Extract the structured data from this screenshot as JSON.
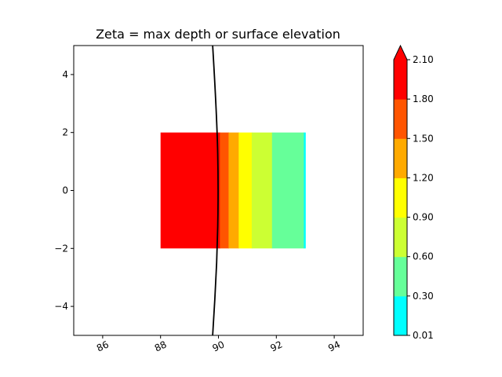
{
  "chart_data": {
    "type": "heatmap",
    "title": "Zeta = max depth or surface elevation",
    "xlabel": "",
    "ylabel": "",
    "xlim": [
      85,
      95
    ],
    "ylim": [
      -5,
      5
    ],
    "xticks": [
      {
        "value": 86,
        "label": "86"
      },
      {
        "value": 88,
        "label": "88"
      },
      {
        "value": 90,
        "label": "90"
      },
      {
        "value": 92,
        "label": "92"
      },
      {
        "value": 94,
        "label": "94"
      }
    ],
    "yticks": [
      {
        "value": 4,
        "label": "4"
      },
      {
        "value": 2,
        "label": "2"
      },
      {
        "value": 0,
        "label": "0"
      },
      {
        "value": -2,
        "label": "−2"
      },
      {
        "value": -4,
        "label": "−4"
      }
    ],
    "grid": false,
    "filled_bands": [
      {
        "x_start": 88.0,
        "x_end": 90.05,
        "color": "#ff0000",
        "level": "1.80–2.10"
      },
      {
        "x_start": 90.05,
        "x_end": 90.35,
        "color": "#ff5500",
        "level": "1.50–1.80"
      },
      {
        "x_start": 90.35,
        "x_end": 90.7,
        "color": "#ffaa00",
        "level": "1.20–1.50"
      },
      {
        "x_start": 90.7,
        "x_end": 91.15,
        "color": "#ffff00",
        "level": "0.90–1.20"
      },
      {
        "x_start": 91.15,
        "x_end": 91.85,
        "color": "#ccff33",
        "level": "0.60–0.90"
      },
      {
        "x_start": 91.85,
        "x_end": 92.95,
        "color": "#66ff99",
        "level": "0.30–0.60"
      },
      {
        "x_start": 92.95,
        "x_end": 93.0,
        "color": "#00ffff",
        "level": "0.01–0.30"
      }
    ],
    "region": {
      "x": [
        88,
        93
      ],
      "y": [
        -2,
        2
      ]
    },
    "shoreline": [
      {
        "x": 89.8,
        "y": 5
      },
      {
        "x": 89.95,
        "y": 2.5
      },
      {
        "x": 90.0,
        "y": 0
      },
      {
        "x": 89.95,
        "y": -2.5
      },
      {
        "x": 89.8,
        "y": -5
      }
    ],
    "colorbar": {
      "levels": [
        "0.01",
        "0.30",
        "0.60",
        "0.90",
        "1.20",
        "1.50",
        "1.80",
        "2.10"
      ],
      "colors": [
        "#00ffff",
        "#66ff99",
        "#ccff33",
        "#ffff00",
        "#ffaa00",
        "#ff5500",
        "#ff0000"
      ],
      "extend": "max",
      "extend_color": "#ff0000"
    }
  }
}
